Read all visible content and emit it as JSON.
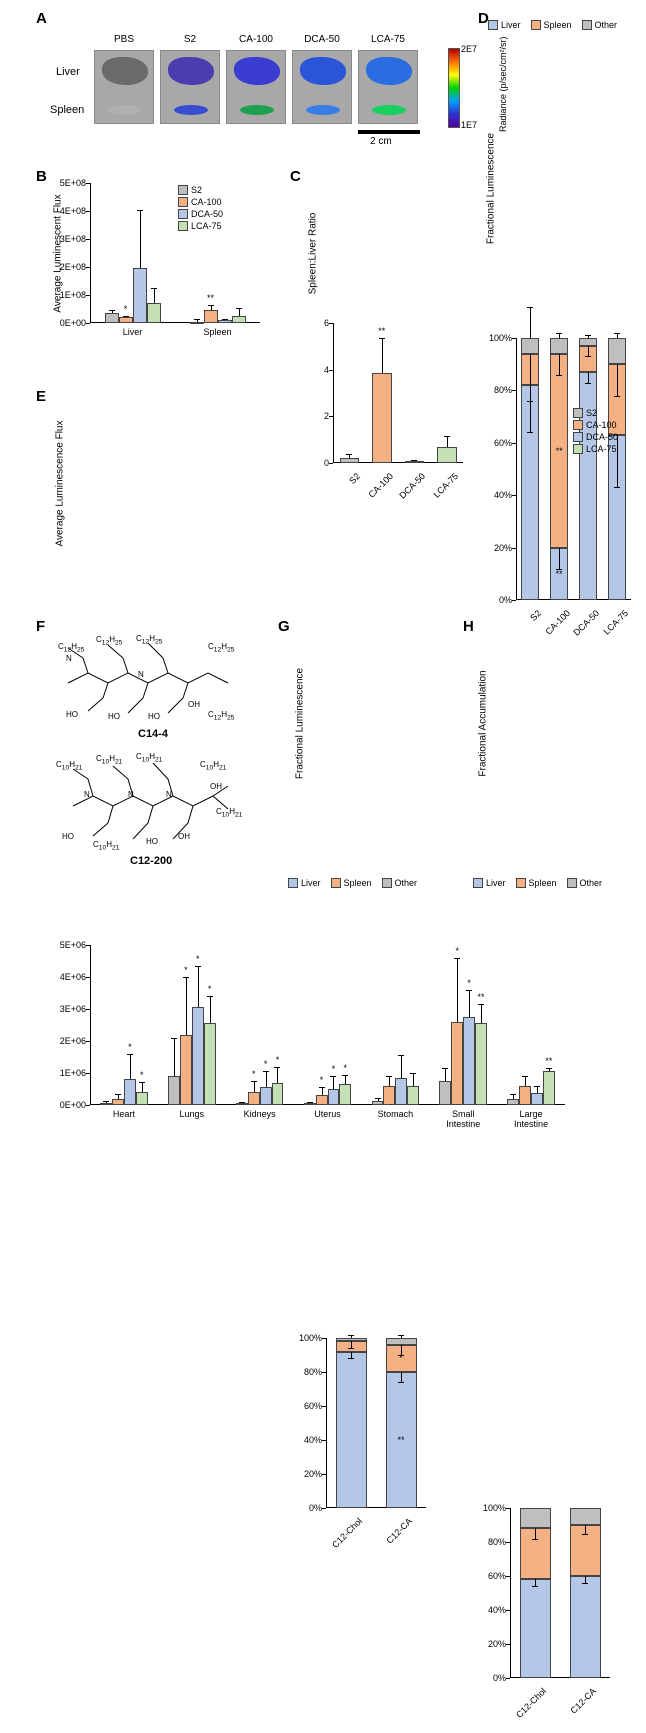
{
  "panelA": {
    "label": "A",
    "rowLabels": [
      "Liver",
      "Spleen"
    ],
    "samples": [
      "PBS",
      "S2",
      "CA-100",
      "DCA-50",
      "LCA-75"
    ],
    "liverColors": [
      "#6a6a6a",
      "#4a3db0",
      "#3a3dd0",
      "#2a55d8",
      "#2a6de0"
    ],
    "spleenColors": [
      "#b0b0b0",
      "#3a4dd0",
      "#1ea050",
      "#3a7de8",
      "#18d060"
    ],
    "scaleText": "2 cm",
    "radianceLabel": "Radiance (p/sec/cm²/sr)",
    "radianceMax": "2E7",
    "radianceMin": "1E7"
  },
  "panelB": {
    "label": "B",
    "yTitle": "Average Luminescent Flux",
    "yMax": 500000000.0,
    "yStep": 100000000.0,
    "yTickLabels": [
      "0E+00",
      "1E+08",
      "2E+08",
      "3E+08",
      "4E+08",
      "5E+08"
    ],
    "groups": [
      "Liver",
      "Spleen"
    ],
    "series": [
      "S2",
      "CA-100",
      "DCA-50",
      "LCA-75"
    ],
    "colors": [
      "#bfbfbf",
      "#f4b183",
      "#b4c7e7",
      "#c5e0b4"
    ],
    "data": {
      "Liver": {
        "vals": [
          35000000.0,
          20000000.0,
          195000000.0,
          70000000.0
        ],
        "errs": [
          12000000.0,
          5000000.0,
          210000000.0,
          55000000.0
        ],
        "stars": [
          "",
          "*",
          "",
          ""
        ]
      },
      "Spleen": {
        "vals": [
          5000000.0,
          45000000.0,
          10000000.0,
          25000000.0
        ],
        "errs": [
          8000000.0,
          20000000.0,
          4000000.0,
          30000000.0
        ],
        "stars": [
          "",
          "**",
          "",
          ""
        ]
      }
    }
  },
  "panelC": {
    "label": "C",
    "yTitle": "Spleen:Liver Ratio",
    "yMax": 6,
    "yStep": 2,
    "yTickLabels": [
      "0",
      "2",
      "4",
      "6"
    ],
    "cats": [
      "S2",
      "CA-100",
      "DCA-50",
      "LCA-75"
    ],
    "colors": [
      "#bfbfbf",
      "#f4b183",
      "#b4c7e7",
      "#c5e0b4"
    ],
    "vals": [
      0.22,
      3.85,
      0.1,
      0.7
    ],
    "errs": [
      0.15,
      1.5,
      0.05,
      0.45
    ],
    "stars": [
      "",
      "**",
      "",
      ""
    ]
  },
  "panelD": {
    "label": "D",
    "yTitle": "Fractional Luminescence",
    "yTickLabels": [
      "0%",
      "20%",
      "40%",
      "60%",
      "80%",
      "100%"
    ],
    "cats": [
      "S2",
      "CA-100",
      "DCA-50",
      "LCA-75"
    ],
    "legend": [
      "Liver",
      "Spleen",
      "Other"
    ],
    "colors": [
      "#b4c7e7",
      "#f4b183",
      "#bfbfbf"
    ],
    "stacks": [
      {
        "vals": [
          82,
          12,
          6
        ],
        "errs": [
          18,
          18,
          0
        ],
        "stars": [
          "",
          "",
          ""
        ]
      },
      {
        "vals": [
          20,
          74,
          6
        ],
        "errs": [
          8,
          8,
          0
        ],
        "stars": [
          "**",
          "**",
          ""
        ]
      },
      {
        "vals": [
          87,
          10,
          3
        ],
        "errs": [
          4,
          4,
          0
        ],
        "stars": [
          "",
          "",
          ""
        ]
      },
      {
        "vals": [
          63,
          27,
          10
        ],
        "errs": [
          20,
          12,
          0
        ],
        "stars": [
          "",
          "",
          ""
        ]
      }
    ]
  },
  "panelE": {
    "label": "E",
    "yTitle": "Average Luminescence Flux",
    "yMax": 5000000.0,
    "yStep": 1000000.0,
    "yTickLabels": [
      "0E+00",
      "1E+06",
      "2E+06",
      "3E+06",
      "4E+06",
      "5E+06"
    ],
    "groups": [
      "Heart",
      "Lungs",
      "Kidneys",
      "Uterus",
      "Stomach",
      "Small\nIntestine",
      "Large\nIntestine"
    ],
    "series": [
      "S2",
      "CA-100",
      "DCA-50",
      "LCA-75"
    ],
    "colors": [
      "#bfbfbf",
      "#f4b183",
      "#b4c7e7",
      "#c5e0b4"
    ],
    "data": [
      {
        "vals": [
          60000.0,
          180000.0,
          800000.0,
          420000.0
        ],
        "errs": [
          50000.0,
          150000.0,
          800000.0,
          300000.0
        ],
        "stars": [
          "",
          "",
          "*",
          "*"
        ]
      },
      {
        "vals": [
          900000.0,
          2200000.0,
          3050000.0,
          2550000.0
        ],
        "errs": [
          1200000.0,
          1800000.0,
          1300000.0,
          850000.0
        ],
        "stars": [
          "",
          "*",
          "*",
          "*"
        ]
      },
      {
        "vals": [
          50000.0,
          400000.0,
          550000.0,
          700000.0
        ],
        "errs": [
          40000.0,
          350000.0,
          500000.0,
          500000.0
        ],
        "stars": [
          "",
          "*",
          "*",
          "*"
        ]
      },
      {
        "vals": [
          50000.0,
          300000.0,
          500000.0,
          650000.0
        ],
        "errs": [
          50000.0,
          250000.0,
          400000.0,
          300000.0
        ],
        "stars": [
          "",
          "*",
          "*",
          "*"
        ]
      },
      {
        "vals": [
          120000.0,
          600000.0,
          850000.0,
          600000.0
        ],
        "errs": [
          100000.0,
          300000.0,
          700000.0,
          400000.0
        ],
        "stars": [
          "",
          "",
          "",
          ""
        ]
      },
      {
        "vals": [
          750000.0,
          2600000.0,
          2750000.0,
          2550000.0
        ],
        "errs": [
          400000.0,
          2000000.0,
          850000.0,
          600000.0
        ],
        "stars": [
          "",
          "*",
          "*",
          "**"
        ]
      },
      {
        "vals": [
          200000.0,
          600000.0,
          380000.0,
          1050000.0
        ],
        "errs": [
          150000.0,
          300000.0,
          220000.0,
          100000.0
        ],
        "stars": [
          "",
          "",
          "",
          "**"
        ]
      }
    ]
  },
  "panelF": {
    "label": "F",
    "name1": "C14-4",
    "name2": "C12-200"
  },
  "panelG": {
    "label": "G",
    "yTitle": "Fractional Luminescence",
    "yTickLabels": [
      "0%",
      "20%",
      "40%",
      "60%",
      "80%",
      "100%"
    ],
    "cats": [
      "C12-Chol",
      "C12-CA"
    ],
    "legend": [
      "Liver",
      "Spleen",
      "Other"
    ],
    "colors": [
      "#b4c7e7",
      "#f4b183",
      "#bfbfbf"
    ],
    "stacks": [
      {
        "vals": [
          92,
          6,
          2
        ],
        "errs": [
          4,
          4,
          0
        ],
        "stars": [
          "",
          "",
          ""
        ]
      },
      {
        "vals": [
          80,
          16,
          4
        ],
        "errs": [
          6,
          6,
          0
        ],
        "stars": [
          "**",
          "*",
          ""
        ]
      }
    ]
  },
  "panelH": {
    "label": "H",
    "yTitle": "Fractional Accumulation",
    "yTickLabels": [
      "0%",
      "20%",
      "40%",
      "60%",
      "80%",
      "100%"
    ],
    "cats": [
      "C12-Chol",
      "C12-CA"
    ],
    "legend": [
      "Liver",
      "Spleen",
      "Other"
    ],
    "colors": [
      "#b4c7e7",
      "#f4b183",
      "#bfbfbf"
    ],
    "stacks": [
      {
        "vals": [
          58,
          30,
          12
        ],
        "errs": [
          4,
          6,
          4
        ],
        "stars": [
          "",
          "",
          ""
        ]
      },
      {
        "vals": [
          60,
          30,
          10
        ],
        "errs": [
          4,
          5,
          3
        ],
        "stars": [
          "",
          "",
          ""
        ]
      }
    ]
  }
}
